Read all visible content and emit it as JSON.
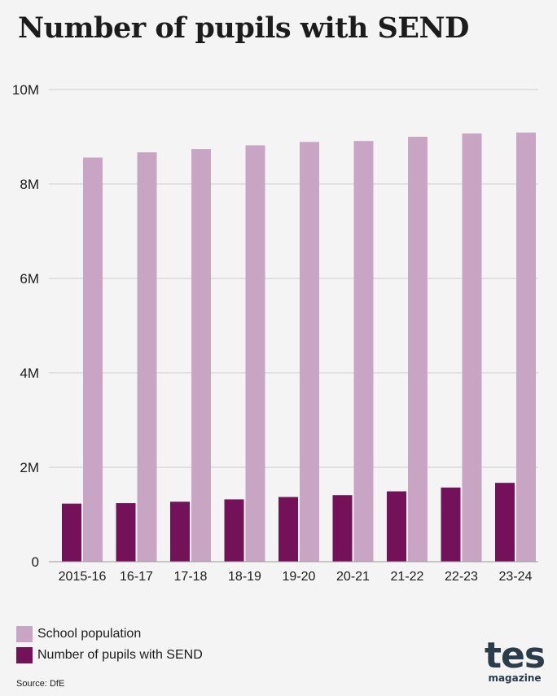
{
  "colors": {
    "school_population": "#c9a5c4",
    "send": "#741259",
    "grid": "#cccccc",
    "axis": "#999999",
    "text": "#1c1c1c"
  },
  "chart_data": {
    "type": "bar",
    "title": "Number of pupils with SEND",
    "categories": [
      "2015-16",
      "16-17",
      "17-18",
      "18-19",
      "19-20",
      "20-21",
      "21-22",
      "22-23",
      "23-24"
    ],
    "series": [
      {
        "name": "Number of pupils with SEND",
        "values": [
          1230000,
          1240000,
          1270000,
          1320000,
          1370000,
          1410000,
          1490000,
          1570000,
          1670000
        ]
      },
      {
        "name": "School population",
        "values": [
          8560000,
          8670000,
          8740000,
          8820000,
          8890000,
          8910000,
          9000000,
          9070000,
          9090000
        ]
      }
    ],
    "ylim": [
      0,
      10000000
    ],
    "yticks": [
      0,
      2000000,
      4000000,
      6000000,
      8000000,
      10000000
    ],
    "ytick_labels": [
      "0",
      "2M",
      "4M",
      "6M",
      "8M",
      "10M"
    ],
    "xlabel": "",
    "ylabel": "",
    "grid": true,
    "legend": {
      "placement": "bottom-left",
      "order": [
        "School population",
        "Number of pupils with SEND"
      ]
    }
  },
  "source_text": "Source: DfE",
  "logo": {
    "word": "tes",
    "sub": "magazine"
  }
}
